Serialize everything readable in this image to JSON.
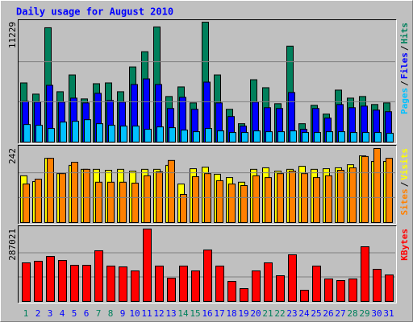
{
  "chart_data": [
    {
      "type": "bar",
      "title": "Daily usage for August 2010",
      "ylim": [
        0,
        11229
      ],
      "yticks": [
        11229
      ],
      "legend_separator": "/",
      "series": [
        {
          "name": "Hits",
          "color": "#00805C",
          "values": [
            5540,
            4492,
            10705,
            4716,
            6288,
            4042,
            5465,
            5540,
            4716,
            7037,
            8459,
            10780,
            4267,
            5165,
            3668,
            11229,
            6288,
            3069,
            1722,
            5839,
            5090,
            3593,
            8983,
            1722,
            3444,
            2620,
            4866,
            4117,
            4267,
            3518,
            3668
          ]
        },
        {
          "name": "Files",
          "color": "#0000FF",
          "values": [
            3818,
            3743,
            5315,
            3743,
            4117,
            3668,
            4566,
            3893,
            3743,
            5390,
            5914,
            5390,
            3144,
            4192,
            3069,
            5615,
            3668,
            2396,
            1497,
            3743,
            3219,
            3144,
            4641,
            1198,
            3144,
            2246,
            3518,
            3219,
            3369,
            2994,
            2845
          ]
        },
        {
          "name": "Pages",
          "color": "#00C0FF",
          "values": [
            1647,
            1572,
            1273,
            1872,
            1946,
            2096,
            1722,
            1572,
            1497,
            1497,
            1198,
            1422,
            1347,
            1123,
            973,
            1273,
            1048,
            898,
            898,
            1048,
            973,
            973,
            1048,
            898,
            898,
            973,
            973,
            898,
            898,
            898,
            823
          ]
        }
      ]
    },
    {
      "type": "bar",
      "ylim": [
        0,
        242
      ],
      "yticks": [
        242
      ],
      "legend_separator": "/",
      "series": [
        {
          "name": "Visits",
          "color": "#FFFF00",
          "values": [
            153,
            134,
            210,
            160,
            187,
            174,
            174,
            171,
            174,
            168,
            174,
            174,
            187,
            126,
            176,
            181,
            158,
            147,
            132,
            174,
            179,
            168,
            174,
            184,
            174,
            176,
            179,
            189,
            218,
            200,
            200
          ]
        },
        {
          "name": "Sites",
          "color": "#FF8000",
          "values": [
            126,
            142,
            210,
            160,
            197,
            174,
            132,
            132,
            132,
            129,
            153,
            166,
            203,
            92,
            150,
            160,
            137,
            126,
            121,
            153,
            147,
            160,
            168,
            160,
            147,
            153,
            171,
            179,
            216,
            242,
            210
          ]
        }
      ]
    },
    {
      "type": "bar",
      "ylim": [
        0,
        287021
      ],
      "yticks": [
        287021
      ],
      "categories": [
        "1",
        "2",
        "3",
        "4",
        "5",
        "6",
        "7",
        "8",
        "9",
        "10",
        "11",
        "12",
        "13",
        "14",
        "15",
        "16",
        "17",
        "18",
        "19",
        "20",
        "21",
        "22",
        "23",
        "24",
        "25",
        "26",
        "27",
        "28",
        "29",
        "30",
        "31"
      ],
      "category_colors": [
        "#00805C",
        "#0000FF",
        "#0000FF",
        "#0000FF",
        "#0000FF",
        "#0000FF",
        "#00805C",
        "#00805C",
        "#0000FF",
        "#0000FF",
        "#0000FF",
        "#0000FF",
        "#0000FF",
        "#00805C",
        "#00805C",
        "#0000FF",
        "#0000FF",
        "#0000FF",
        "#0000FF",
        "#0000FF",
        "#00805C",
        "#00805C",
        "#0000FF",
        "#0000FF",
        "#0000FF",
        "#0000FF",
        "#0000FF",
        "#00805C",
        "#00805C",
        "#0000FF",
        "#0000FF"
      ],
      "series": [
        {
          "name": "KBytes",
          "color": "#FF0000",
          "values": [
            153072,
            159450,
            178584,
            162639,
            143505,
            143505,
            200907,
            140316,
            137127,
            121182,
            287021,
            140316,
            92481,
            140316,
            121182,
            204096,
            140316,
            79725,
            51024,
            121182,
            153072,
            102048,
            184962,
            44646,
            140316,
            89292,
            82914,
            89292,
            216852,
            127560,
            105237
          ]
        }
      ]
    }
  ]
}
